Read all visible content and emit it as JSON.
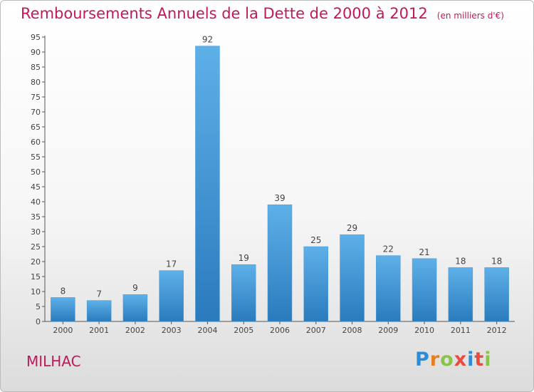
{
  "header": {
    "title": "Remboursements Annuels de la Dette de 2000 à 2012",
    "subtitle": "(en milliers d'€)"
  },
  "footer": {
    "commune": "MILHAC",
    "logo_text": "Proxiti",
    "logo_colors": [
      "#2e8bd6",
      "#e67e22",
      "#8bc34a",
      "#e74c3c",
      "#2e8bd6",
      "#e74c3c",
      "#8bc34a"
    ]
  },
  "colors": {
    "accent": "#c2185b",
    "bar_top": "#5eb0e8",
    "bar_bottom": "#2a7bbd"
  },
  "chart_data": {
    "type": "bar",
    "title": "Remboursements Annuels de la Dette de 2000 à 2012",
    "subtitle": "(en milliers d'€)",
    "categories": [
      "2000",
      "2001",
      "2002",
      "2003",
      "2004",
      "2005",
      "2006",
      "2007",
      "2008",
      "2009",
      "2010",
      "2011",
      "2012"
    ],
    "values": [
      8,
      7,
      9,
      17,
      92,
      19,
      39,
      25,
      29,
      22,
      21,
      18,
      18
    ],
    "ylim": [
      0,
      95
    ],
    "yticks": [
      0,
      5,
      10,
      15,
      20,
      25,
      30,
      35,
      40,
      45,
      50,
      55,
      60,
      65,
      70,
      75,
      80,
      85,
      90,
      95
    ],
    "grid": false,
    "data_labels": true
  }
}
